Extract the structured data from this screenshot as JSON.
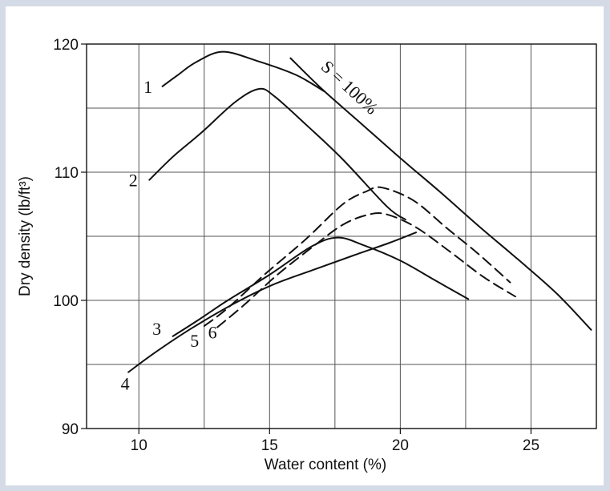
{
  "chart_data": {
    "type": "line",
    "title": "",
    "xlabel": "Water content (%)",
    "ylabel": "Dry density (lb/ft³)",
    "xlim": [
      8,
      27.5
    ],
    "ylim": [
      90,
      120
    ],
    "xticks": [
      10,
      15,
      20,
      25
    ],
    "yticks": [
      90,
      100,
      110,
      120
    ],
    "grid": true,
    "saturation_label": "S = 100%",
    "series": [
      {
        "name": "1",
        "dash": false,
        "points": [
          [
            10.9,
            116.7
          ],
          [
            11.5,
            117.6
          ],
          [
            12.2,
            118.6
          ],
          [
            13.2,
            119.4
          ],
          [
            14.5,
            118.7
          ],
          [
            16.0,
            117.6
          ],
          [
            17.1,
            116.3
          ]
        ]
      },
      {
        "name": "2",
        "dash": false,
        "points": [
          [
            10.4,
            109.4
          ],
          [
            11.3,
            111.2
          ],
          [
            12.4,
            113.1
          ],
          [
            13.7,
            115.5
          ],
          [
            14.6,
            116.5
          ],
          [
            15.2,
            115.9
          ],
          [
            16.4,
            113.7
          ],
          [
            17.8,
            111.0
          ],
          [
            19.5,
            107.3
          ],
          [
            20.2,
            106.3
          ]
        ]
      },
      {
        "name": "3",
        "dash": false,
        "points": [
          [
            11.3,
            97.2
          ],
          [
            12.3,
            98.5
          ],
          [
            13.4,
            100.0
          ],
          [
            15.0,
            102.0
          ],
          [
            16.6,
            104.2
          ],
          [
            17.6,
            104.9
          ],
          [
            18.6,
            104.3
          ],
          [
            20.0,
            103.1
          ],
          [
            21.3,
            101.6
          ],
          [
            22.6,
            100.1
          ]
        ]
      },
      {
        "name": "4",
        "dash": false,
        "points": [
          [
            9.6,
            94.4
          ],
          [
            10.6,
            95.9
          ],
          [
            12.0,
            97.8
          ],
          [
            13.6,
            99.7
          ],
          [
            15.1,
            101.2
          ],
          [
            16.7,
            102.4
          ],
          [
            18.2,
            103.5
          ],
          [
            19.6,
            104.5
          ],
          [
            20.6,
            105.3
          ]
        ]
      },
      {
        "name": "5",
        "dash": true,
        "points": [
          [
            12.5,
            98.0
          ],
          [
            13.4,
            99.4
          ],
          [
            14.8,
            102.0
          ],
          [
            16.4,
            104.8
          ],
          [
            17.8,
            107.5
          ],
          [
            18.7,
            108.5
          ],
          [
            19.3,
            108.8
          ],
          [
            20.5,
            107.8
          ],
          [
            21.8,
            105.6
          ],
          [
            23.0,
            103.6
          ],
          [
            24.2,
            101.4
          ]
        ]
      },
      {
        "name": "6",
        "dash": true,
        "points": [
          [
            13.0,
            97.9
          ],
          [
            14.0,
            99.6
          ],
          [
            15.3,
            102.0
          ],
          [
            16.6,
            104.1
          ],
          [
            17.8,
            105.9
          ],
          [
            18.8,
            106.7
          ],
          [
            19.5,
            106.7
          ],
          [
            20.6,
            105.7
          ],
          [
            21.9,
            103.8
          ],
          [
            23.2,
            101.8
          ],
          [
            24.4,
            100.3
          ]
        ]
      },
      {
        "name": "S = 100%",
        "dash": false,
        "points": [
          [
            15.8,
            118.9
          ],
          [
            17.0,
            116.5
          ],
          [
            18.5,
            113.8
          ],
          [
            20.0,
            111.1
          ],
          [
            21.5,
            108.5
          ],
          [
            23.0,
            105.8
          ],
          [
            24.5,
            103.2
          ],
          [
            26.0,
            100.5
          ],
          [
            27.3,
            97.7
          ]
        ]
      }
    ]
  }
}
